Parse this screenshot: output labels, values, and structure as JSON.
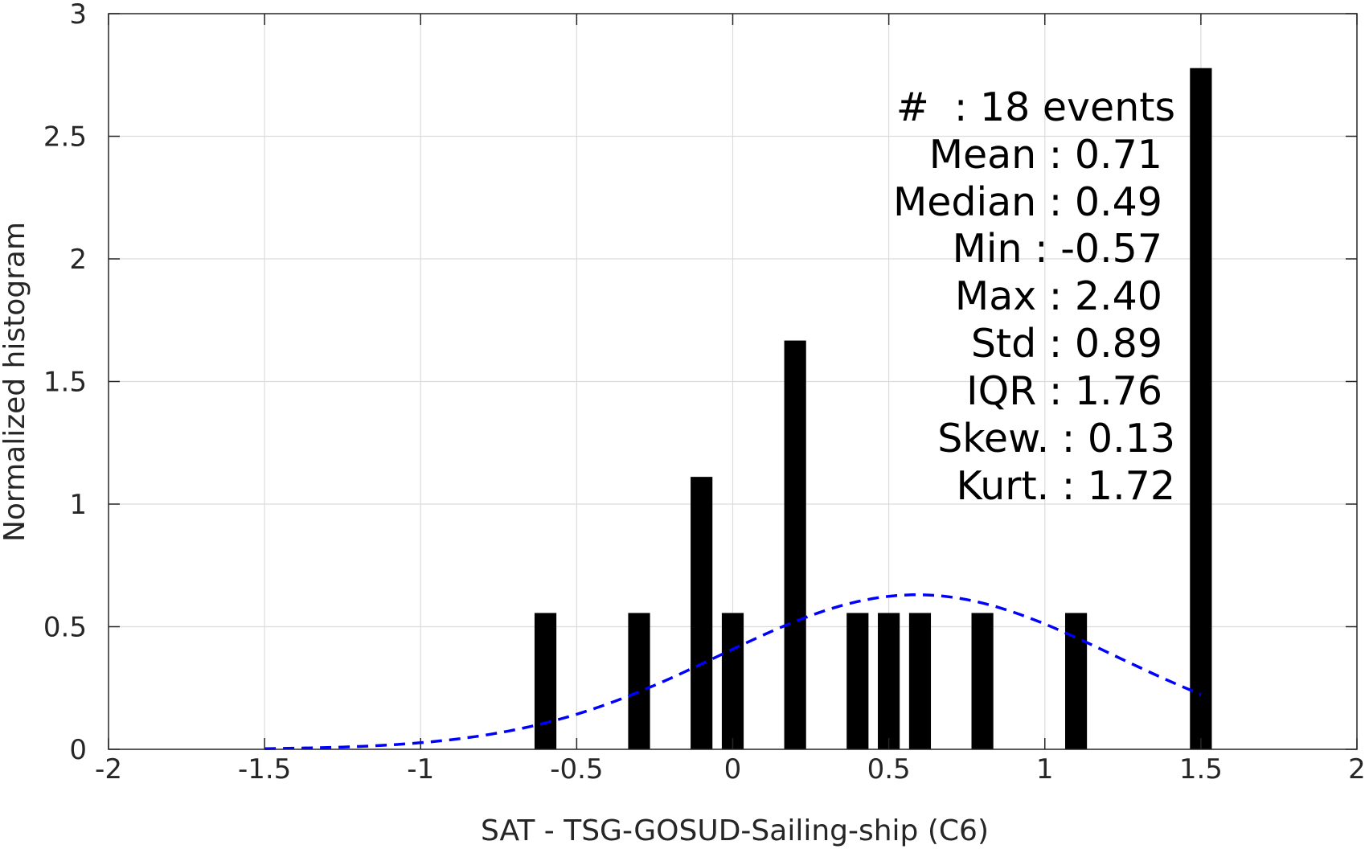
{
  "chart_data": {
    "type": "bar",
    "xlabel": "SAT - TSG-GOSUD-Sailing-ship (C6)",
    "ylabel": "Normalized histogram",
    "xlim": [
      -2,
      2
    ],
    "ylim": [
      0,
      3
    ],
    "xticks": [
      -2,
      -1.5,
      -1,
      -0.5,
      0,
      0.5,
      1,
      1.5,
      2
    ],
    "xtick_labels": [
      "-2",
      "-1.5",
      "-1",
      "-0.5",
      "0",
      "0.5",
      "1",
      "1.5",
      "2"
    ],
    "yticks": [
      0,
      0.5,
      1,
      1.5,
      2,
      2.5,
      3
    ],
    "ytick_labels": [
      "0",
      "0.5",
      "1",
      "1.5",
      "2",
      "2.5",
      "3"
    ],
    "grid": true,
    "bar_color": "#000000",
    "bar_width": 0.07,
    "bins": [
      {
        "x": -0.6,
        "value": 0.556
      },
      {
        "x": -0.3,
        "value": 0.556
      },
      {
        "x": -0.1,
        "value": 1.111
      },
      {
        "x": 0.0,
        "value": 0.556
      },
      {
        "x": 0.2,
        "value": 1.667
      },
      {
        "x": 0.4,
        "value": 0.556
      },
      {
        "x": 0.5,
        "value": 0.556
      },
      {
        "x": 0.6,
        "value": 0.556
      },
      {
        "x": 0.8,
        "value": 0.556
      },
      {
        "x": 1.1,
        "value": 0.556
      },
      {
        "x": 1.5,
        "value": 2.778
      }
    ],
    "fit_curve": {
      "style": "dashed",
      "color": "#0000ff",
      "distribution": "normal",
      "mean": 0.59,
      "std": 0.633,
      "x_range": [
        -1.5,
        1.5
      ]
    },
    "annotations": [
      "#  : 18 events",
      "Mean : 0.71",
      "Median : 0.49",
      "Min : -0.57",
      "Max : 2.40",
      "Std : 0.89",
      "IQR : 1.76",
      "Skew. : 0.13",
      "Kurt. : 1.72"
    ]
  }
}
